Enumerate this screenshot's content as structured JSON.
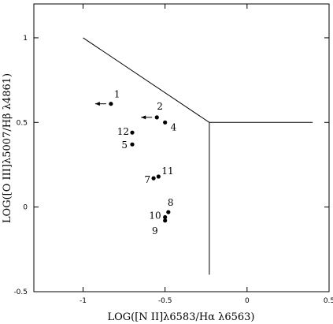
{
  "chart_data": {
    "type": "scatter",
    "xlabel": "LOG([N II]λ6583/Hα λ6563)",
    "ylabel": "LOG([O III]λ5007/Hβ λ4861)",
    "xlim": [
      -1.3,
      0.5
    ],
    "ylim": [
      -0.5,
      1.2
    ],
    "x_ticks": [
      -1,
      -0.5,
      0,
      0.5
    ],
    "y_ticks": [
      -0.5,
      0,
      0.5,
      1
    ],
    "x_tick_labels": [
      "-1",
      "-0.5",
      "0",
      "0.5"
    ],
    "y_tick_labels": [
      "-0.5",
      "0",
      "0.5",
      "1"
    ],
    "grid": false,
    "points": [
      {
        "label": "1",
        "x": -0.83,
        "y": 0.61,
        "upper_limit_arrow": true
      },
      {
        "label": "2",
        "x": -0.55,
        "y": 0.53,
        "upper_limit_arrow": true
      },
      {
        "label": "4",
        "x": -0.5,
        "y": 0.5
      },
      {
        "label": "12",
        "x": -0.7,
        "y": 0.44
      },
      {
        "label": "5",
        "x": -0.7,
        "y": 0.37
      },
      {
        "label": "7",
        "x": -0.57,
        "y": 0.17
      },
      {
        "label": "11",
        "x": -0.54,
        "y": 0.18
      },
      {
        "label": "8",
        "x": -0.48,
        "y": -0.03
      },
      {
        "label": "10",
        "x": -0.5,
        "y": -0.06
      },
      {
        "label": "9",
        "x": -0.5,
        "y": -0.08
      }
    ],
    "boundary_lines": [
      {
        "x": [
          -1.0,
          -0.23
        ],
        "y": [
          1.0,
          0.5
        ]
      },
      {
        "x": [
          -0.23,
          0.4
        ],
        "y": [
          0.5,
          0.5
        ]
      },
      {
        "x": [
          -0.23,
          -0.23
        ],
        "y": [
          0.5,
          -0.4
        ]
      }
    ]
  }
}
